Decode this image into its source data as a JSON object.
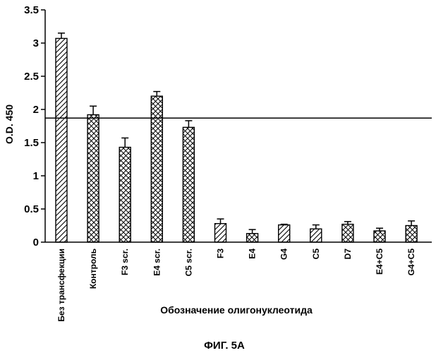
{
  "chart_data": {
    "type": "bar",
    "title": "",
    "xlabel": "Обозначение олигонуклеотида",
    "ylabel": "O.D. 450",
    "ylim": [
      0,
      3.5
    ],
    "yticks": [
      "0",
      "0.5",
      "1",
      "1.5",
      "2",
      "2.5",
      "3",
      "3.5"
    ],
    "categories": [
      "Без трансфекции",
      "Контроль",
      "F3 scr.",
      "E4 scr.",
      "C5 scr.",
      "F3",
      "E4",
      "G4",
      "C5",
      "D7",
      "E4+C5",
      "G4+C5"
    ],
    "values": [
      3.07,
      1.92,
      1.43,
      2.2,
      1.73,
      0.28,
      0.13,
      0.26,
      0.2,
      0.27,
      0.17,
      0.25
    ],
    "errors": [
      0.08,
      0.13,
      0.14,
      0.07,
      0.1,
      0.07,
      0.06,
      0.01,
      0.06,
      0.04,
      0.04,
      0.07
    ],
    "patterns": [
      "diagonal",
      "crosshatch",
      "crosshatch",
      "crosshatch",
      "crosshatch",
      "diagonal",
      "crosshatch",
      "diagonal",
      "diagonal",
      "crosshatch",
      "crosshatch",
      "crosshatch"
    ],
    "reference_line": 1.87,
    "grid": false,
    "legend": "none"
  },
  "caption": "ФИГ. 5А"
}
